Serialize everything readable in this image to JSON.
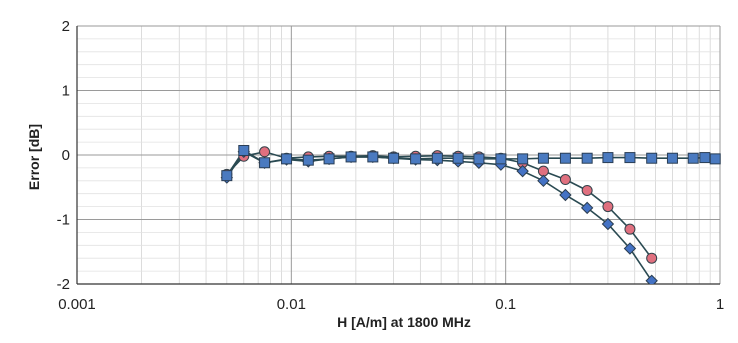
{
  "chart_data": {
    "type": "line",
    "title": "",
    "xlabel": "H [A/m] at 1800 MHz",
    "ylabel": "Error [dB]",
    "x_scale": "log",
    "xlim": [
      0.001,
      1
    ],
    "ylim": [
      -2,
      2
    ],
    "grid": true,
    "legend": "none",
    "x_ticks": [
      0.001,
      0.01,
      0.1,
      1
    ],
    "x_tick_labels": [
      "0.001",
      "0.01",
      "0.1",
      "1"
    ],
    "y_ticks": [
      2,
      1,
      0,
      -1,
      -2
    ],
    "y_tick_labels": [
      "2",
      "1",
      "0",
      "-1",
      "-2"
    ],
    "series": [
      {
        "marker": "circle",
        "color": "#e0707f",
        "x": [
          0.005,
          0.006,
          0.0075,
          0.0095,
          0.012,
          0.015,
          0.019,
          0.024,
          0.03,
          0.038,
          0.048,
          0.06,
          0.075,
          0.095,
          0.12,
          0.15,
          0.19,
          0.24,
          0.3,
          0.38,
          0.48
        ],
        "y": [
          -0.3,
          -0.02,
          0.05,
          -0.05,
          -0.03,
          -0.02,
          -0.02,
          -0.01,
          -0.03,
          -0.02,
          -0.01,
          -0.02,
          -0.03,
          -0.05,
          -0.12,
          -0.25,
          -0.38,
          -0.55,
          -0.8,
          -1.15,
          -1.6
        ]
      },
      {
        "marker": "diamond",
        "color": "#4472c4",
        "x": [
          0.005,
          0.006,
          0.0075,
          0.0095,
          0.012,
          0.015,
          0.019,
          0.024,
          0.03,
          0.038,
          0.048,
          0.06,
          0.075,
          0.095,
          0.12,
          0.15,
          0.19,
          0.24,
          0.3,
          0.38,
          0.48
        ],
        "y": [
          -0.35,
          0.05,
          -0.12,
          -0.07,
          -0.1,
          -0.06,
          -0.03,
          -0.03,
          -0.05,
          -0.07,
          -0.08,
          -0.1,
          -0.12,
          -0.15,
          -0.25,
          -0.4,
          -0.62,
          -0.82,
          -1.07,
          -1.45,
          -1.95
        ]
      },
      {
        "marker": "square",
        "color": "#4a7ac0",
        "x": [
          0.005,
          0.006,
          0.0075,
          0.0095,
          0.012,
          0.015,
          0.019,
          0.024,
          0.03,
          0.038,
          0.048,
          0.06,
          0.075,
          0.095,
          0.12,
          0.15,
          0.19,
          0.24,
          0.3,
          0.38,
          0.48,
          0.6,
          0.75,
          0.85,
          0.95
        ],
        "y": [
          -0.32,
          0.07,
          -0.12,
          -0.06,
          -0.08,
          -0.06,
          -0.03,
          -0.03,
          -0.05,
          -0.06,
          -0.05,
          -0.05,
          -0.06,
          -0.06,
          -0.06,
          -0.05,
          -0.05,
          -0.05,
          -0.04,
          -0.04,
          -0.05,
          -0.05,
          -0.05,
          -0.04,
          -0.06
        ]
      }
    ]
  }
}
